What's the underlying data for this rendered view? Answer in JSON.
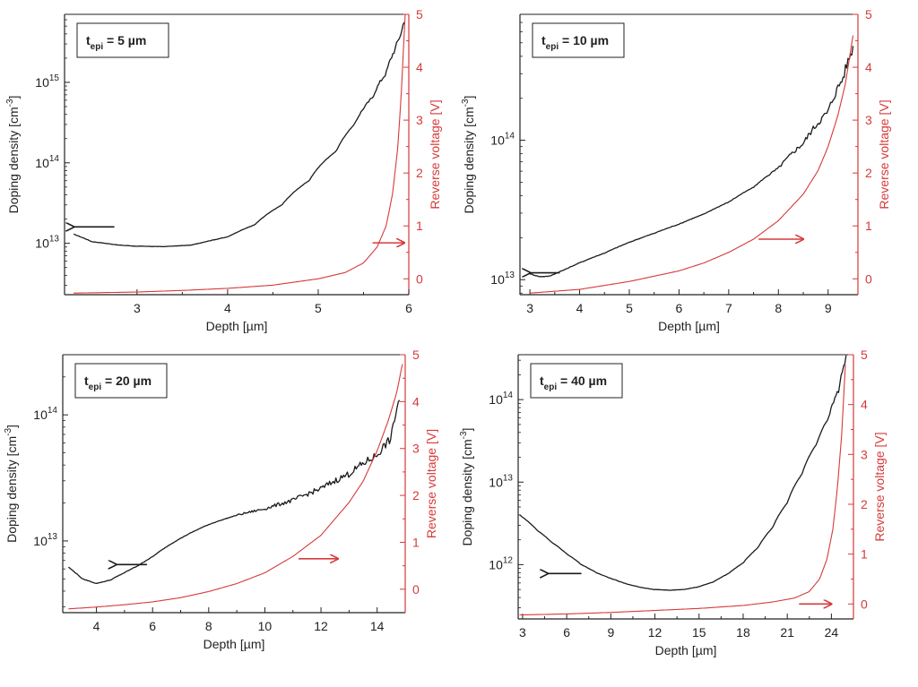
{
  "colors": {
    "doping": "#1a1a1a",
    "voltage": "#d63a3a",
    "axis": "#222222"
  },
  "chart_data": [
    {
      "type": "line",
      "panel": "top-left",
      "label": "t",
      "label_sub": "epi",
      "label_rest": " = 5 µm",
      "xlabel": "Depth [µm]",
      "ylabel_left": "Doping density [cm",
      "ylabel_left_sup": "-3",
      "ylabel_left_end": "]",
      "ylabel_right": "Reverse voltage [V]",
      "xlim": [
        2.2,
        6.0
      ],
      "xticks": [
        3,
        4,
        5,
        6
      ],
      "ylim_left_log": [
        2300000000000.0,
        7000000000000000.0
      ],
      "yticks_left": [
        {
          "value": 10000000000000.0,
          "base": "10",
          "exp": "13"
        },
        {
          "value": 100000000000000.0,
          "base": "10",
          "exp": "14"
        },
        {
          "value": 1000000000000000.0,
          "base": "10",
          "exp": "15"
        }
      ],
      "ylim_right": [
        -0.3,
        5
      ],
      "yticks_right": [
        0,
        1,
        2,
        3,
        4,
        5
      ],
      "series": [
        {
          "name": "Doping density",
          "axis": "left",
          "noise_from": 5.4,
          "x": [
            2.3,
            2.5,
            2.8,
            3.0,
            3.3,
            3.6,
            4.0,
            4.3,
            4.6,
            4.9,
            5.2,
            5.4,
            5.6,
            5.75,
            5.85,
            5.92,
            5.95
          ],
          "y": [
            13000000000000.0,
            10500000000000.0,
            9500000000000.0,
            9200000000000.0,
            9100000000000.0,
            9500000000000.0,
            12000000000000.0,
            17000000000000.0,
            30000000000000.0,
            60000000000000.0,
            140000000000000.0,
            300000000000000.0,
            650000000000000.0,
            1300000000000000.0,
            2600000000000000.0,
            4200000000000000.0,
            6000000000000000.0
          ]
        },
        {
          "name": "Reverse voltage",
          "axis": "right",
          "x": [
            2.3,
            3.0,
            3.5,
            4.0,
            4.5,
            5.0,
            5.3,
            5.5,
            5.65,
            5.75,
            5.82,
            5.88,
            5.92,
            5.96
          ],
          "y": [
            -0.27,
            -0.25,
            -0.22,
            -0.18,
            -0.12,
            0.0,
            0.12,
            0.3,
            0.6,
            1.0,
            1.6,
            2.5,
            3.6,
            5.0
          ]
        }
      ],
      "arrows": [
        {
          "direction": "left",
          "axis": "left",
          "x1": 2.75,
          "x2": 2.3,
          "y": 16000000000000.0
        },
        {
          "direction": "right",
          "axis": "right",
          "x1": 5.6,
          "x2": 5.95,
          "y": 0.68
        }
      ]
    },
    {
      "type": "line",
      "panel": "top-right",
      "label": "t",
      "label_sub": "epi",
      "label_rest": " = 10 µm",
      "xlabel": "Depth [µm]",
      "ylabel_left": "Doping density [cm",
      "ylabel_left_sup": "-3",
      "ylabel_left_end": "]",
      "ylabel_right": "Reverse voltage [V]",
      "xlim": [
        2.8,
        9.6
      ],
      "xticks": [
        3,
        4,
        5,
        6,
        7,
        8,
        9
      ],
      "ylim_left_log": [
        7800000000000.0,
        800000000000000.0
      ],
      "yticks_left": [
        {
          "value": 10000000000000.0,
          "base": "10",
          "exp": "13"
        },
        {
          "value": 100000000000000.0,
          "base": "10",
          "exp": "14"
        }
      ],
      "ylim_right": [
        -0.3,
        5
      ],
      "yticks_right": [
        0,
        1,
        2,
        3,
        4,
        5
      ],
      "series": [
        {
          "name": "Doping density",
          "axis": "left",
          "noise_from": 7.8,
          "x": [
            3.0,
            3.2,
            3.4,
            3.7,
            4.0,
            4.5,
            5.0,
            5.5,
            6.0,
            6.5,
            7.0,
            7.5,
            8.0,
            8.5,
            9.0,
            9.3,
            9.5
          ],
          "y": [
            11000000000000.0,
            10500000000000.0,
            10600000000000.0,
            11800000000000.0,
            13200000000000.0,
            15500000000000.0,
            18500000000000.0,
            21500000000000.0,
            25000000000000.0,
            29500000000000.0,
            36000000000000.0,
            46000000000000.0,
            63000000000000.0,
            95000000000000.0,
            160000000000000.0,
            280000000000000.0,
            460000000000000.0
          ]
        },
        {
          "name": "Reverse voltage",
          "axis": "right",
          "x": [
            3.0,
            4.0,
            5.0,
            6.0,
            6.5,
            7.0,
            7.5,
            8.0,
            8.5,
            8.8,
            9.0,
            9.2,
            9.35,
            9.5
          ],
          "y": [
            -0.27,
            -0.2,
            -0.05,
            0.15,
            0.3,
            0.5,
            0.75,
            1.1,
            1.6,
            2.05,
            2.5,
            3.1,
            3.7,
            4.6
          ]
        }
      ],
      "arrows": [
        {
          "direction": "left",
          "axis": "left",
          "x1": 3.6,
          "x2": 3.0,
          "y": 11200000000000.0
        },
        {
          "direction": "right",
          "axis": "right",
          "x1": 7.6,
          "x2": 8.5,
          "y": 0.75
        }
      ]
    },
    {
      "type": "line",
      "panel": "bottom-left",
      "label": "t",
      "label_sub": "epi",
      "label_rest": " = 20 µm",
      "xlabel": "Depth [µm]",
      "ylabel_left": "Doping density [cm",
      "ylabel_left_sup": "-3",
      "ylabel_left_end": "]",
      "ylabel_right": "Reverse voltage [V]",
      "xlim": [
        2.8,
        15.0
      ],
      "xticks": [
        4,
        6,
        8,
        10,
        12,
        14
      ],
      "ylim_left_log": [
        2700000000000.0,
        300000000000000.0
      ],
      "yticks_left": [
        {
          "value": 10000000000000.0,
          "base": "10",
          "exp": "13"
        },
        {
          "value": 100000000000000.0,
          "base": "10",
          "exp": "14"
        }
      ],
      "ylim_right": [
        -0.5,
        5
      ],
      "yticks_right": [
        0,
        1,
        2,
        3,
        4,
        5
      ],
      "series": [
        {
          "name": "Doping density",
          "axis": "left",
          "noise_from": 9.0,
          "x": [
            3.0,
            3.5,
            4.0,
            4.5,
            5.0,
            5.5,
            6.0,
            6.5,
            7.0,
            7.5,
            8.0,
            9.0,
            10.0,
            11.0,
            12.0,
            13.0,
            14.0,
            14.5,
            14.8
          ],
          "y": [
            6200000000000.0,
            5000000000000.0,
            4600000000000.0,
            4900000000000.0,
            5600000000000.0,
            6400000000000.0,
            7500000000000.0,
            9000000000000.0,
            10500000000000.0,
            12000000000000.0,
            13500000000000.0,
            16000000000000.0,
            18000000000000.0,
            21000000000000.0,
            26000000000000.0,
            34000000000000.0,
            48000000000000.0,
            65000000000000.0,
            135000000000000.0
          ]
        },
        {
          "name": "Reverse voltage",
          "axis": "right",
          "x": [
            3.0,
            4.0,
            5.0,
            6.0,
            7.0,
            8.0,
            9.0,
            10.0,
            11.0,
            12.0,
            13.0,
            13.5,
            14.0,
            14.4,
            14.7,
            14.9
          ],
          "y": [
            -0.42,
            -0.38,
            -0.33,
            -0.27,
            -0.18,
            -0.05,
            0.12,
            0.35,
            0.7,
            1.15,
            1.85,
            2.3,
            2.95,
            3.6,
            4.2,
            4.8
          ]
        }
      ],
      "arrows": [
        {
          "direction": "left",
          "axis": "left",
          "x1": 5.8,
          "x2": 4.7,
          "y": 6500000000000.0
        },
        {
          "direction": "right",
          "axis": "right",
          "x1": 11.2,
          "x2": 12.6,
          "y": 0.65
        }
      ]
    },
    {
      "type": "line",
      "panel": "bottom-right",
      "label": "t",
      "label_sub": "epi",
      "label_rest": " = 40 µm",
      "xlabel": "Depth [µm]",
      "ylabel_left": "Doping density [cm",
      "ylabel_left_sup": "-3",
      "ylabel_left_end": "]",
      "ylabel_right": "Reverse voltage [V]",
      "xlim": [
        2.7,
        25.5
      ],
      "xticks": [
        3,
        6,
        9,
        12,
        15,
        18,
        21,
        24
      ],
      "xtick_labels": [
        "3",
        "6",
        "9",
        "12",
        "15",
        "18",
        "21",
        "24"
      ],
      "ylim_left_log": [
        220000000000.0,
        350000000000000.0
      ],
      "yticks_left": [
        {
          "value": 1000000000000.0,
          "base": "10",
          "exp": "12"
        },
        {
          "value": 10000000000000.0,
          "base": "10",
          "exp": "13"
        },
        {
          "value": 100000000000000.0,
          "base": "10",
          "exp": "14"
        }
      ],
      "ylim_right": [
        -0.3,
        5
      ],
      "yticks_right": [
        0,
        1,
        2,
        3,
        4,
        5
      ],
      "series": [
        {
          "name": "Doping density",
          "axis": "left",
          "noise_from": 23.5,
          "x": [
            2.8,
            4.0,
            5.0,
            6.0,
            7.0,
            8.0,
            9.0,
            10.0,
            11.0,
            12.0,
            13.0,
            14.0,
            15.0,
            16.0,
            17.0,
            18.0,
            19.0,
            20.0,
            21.0,
            22.0,
            23.0,
            23.8,
            24.5,
            25.0
          ],
          "y": [
            4000000000000.0,
            2600000000000.0,
            1850000000000.0,
            1350000000000.0,
            1000000000000.0,
            800000000000.0,
            680000000000.0,
            590000000000.0,
            530000000000.0,
            500000000000.0,
            490000000000.0,
            500000000000.0,
            540000000000.0,
            620000000000.0,
            780000000000.0,
            1050000000000.0,
            1600000000000.0,
            2800000000000.0,
            5600000000000.0,
            12500000000000.0,
            29000000000000.0,
            60000000000000.0,
            130000000000000.0,
            320000000000000.0
          ]
        },
        {
          "name": "Reverse voltage",
          "axis": "right",
          "x": [
            2.8,
            6.0,
            9.0,
            12.0,
            15.0,
            18.0,
            20.0,
            21.5,
            22.5,
            23.2,
            23.7,
            24.1,
            24.4,
            24.7,
            24.95
          ],
          "y": [
            -0.22,
            -0.2,
            -0.17,
            -0.13,
            -0.09,
            -0.03,
            0.04,
            0.12,
            0.25,
            0.5,
            0.9,
            1.5,
            2.3,
            3.4,
            4.8
          ]
        }
      ],
      "arrows": [
        {
          "direction": "left",
          "axis": "left",
          "x1": 7.0,
          "x2": 4.7,
          "y": 780000000000.0
        },
        {
          "direction": "right",
          "axis": "right",
          "x1": 21.8,
          "x2": 24.0,
          "y": 0.0
        }
      ]
    }
  ]
}
